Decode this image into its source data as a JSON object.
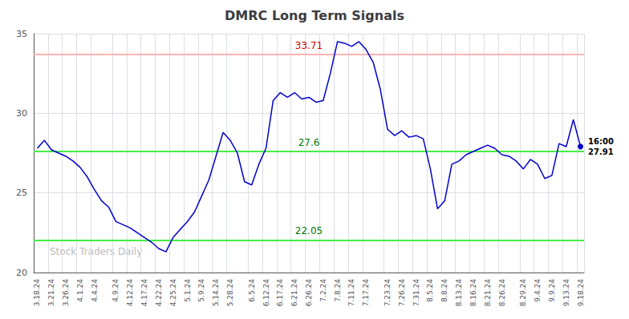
{
  "chart_data": {
    "type": "line",
    "title": "DMRC Long Term Signals",
    "color": "#0000cc",
    "categories": [
      "3.18.24",
      null,
      "3.21.24",
      null,
      "3.26.24",
      null,
      "4.1.24",
      null,
      "4.4.24",
      null,
      null,
      "4.9.24",
      null,
      "4.12.24",
      null,
      "4.17.24",
      null,
      "4.22.24",
      null,
      "4.25.24",
      null,
      "5.1.24",
      null,
      "5.9.24",
      null,
      "5.14.24",
      null,
      "5.28.24",
      null,
      null,
      "6.5.24",
      null,
      "6.12.24",
      null,
      "6.17.24",
      null,
      "6.21.24",
      null,
      "6.26.24",
      null,
      "7.2.24",
      null,
      "7.8.24",
      null,
      "7.11.24",
      null,
      "7.17.24",
      null,
      null,
      "7.23.24",
      null,
      "7.26.24",
      null,
      "7.31.24",
      null,
      "8.5.24",
      null,
      "8.8.24",
      null,
      "8.13.24",
      null,
      "8.16.24",
      null,
      "8.21.24",
      null,
      "8.26.24",
      null,
      null,
      "8.29.24",
      null,
      "9.4.24",
      null,
      "9.9.24",
      null,
      "9.13.24",
      null,
      "9.18.24"
    ],
    "values": [
      27.8,
      28.3,
      27.7,
      27.5,
      27.3,
      27.0,
      26.6,
      26.0,
      25.2,
      24.5,
      24.1,
      23.2,
      23.0,
      22.8,
      22.5,
      22.2,
      21.9,
      21.5,
      21.3,
      22.2,
      22.7,
      23.2,
      23.8,
      24.8,
      25.8,
      27.3,
      28.8,
      28.3,
      27.5,
      25.7,
      25.5,
      26.8,
      27.8,
      30.8,
      31.3,
      31.0,
      31.3,
      30.9,
      31.0,
      30.7,
      30.8,
      32.5,
      34.5,
      34.4,
      34.2,
      34.5,
      34.0,
      33.2,
      31.5,
      29.0,
      28.6,
      28.9,
      28.5,
      28.6,
      28.4,
      26.5,
      24.0,
      24.5,
      26.8,
      27.0,
      27.4,
      27.6,
      27.8,
      28.0,
      27.8,
      27.4,
      27.3,
      27.0,
      26.5,
      27.1,
      26.8,
      25.9,
      26.1,
      28.1,
      27.9,
      29.6,
      27.91
    ],
    "last_point_labels": [
      "16:00",
      "27.91"
    ],
    "reference_lines": [
      {
        "value": 33.71,
        "label": "33.71",
        "color": "#ffb3b3",
        "label_color": "#cc0000"
      },
      {
        "value": 27.6,
        "label": "27.6",
        "color": "#44ee44",
        "label_color": "#007700"
      },
      {
        "value": 22.05,
        "label": "22.05",
        "color": "#44ee44",
        "label_color": "#007700"
      }
    ],
    "watermark": "Stock Traders Daily",
    "ylim": [
      20,
      35
    ],
    "yticks": [
      20,
      25,
      30,
      35
    ],
    "grid": true
  }
}
